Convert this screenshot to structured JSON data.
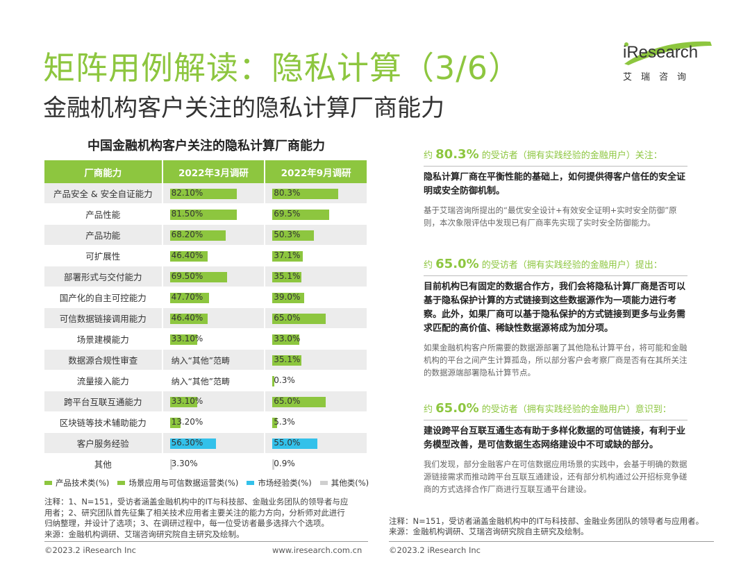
{
  "header": {
    "title": "矩阵用例解读：隐私计算（3/6）",
    "subtitle": "金融机构客户关注的隐私计算厂商能力"
  },
  "logo": {
    "word": "iResearch",
    "cn": "艾瑞咨询"
  },
  "chart_data": {
    "type": "table",
    "title": "中国金融机构客户关注的隐私计算厂商能力",
    "columns": [
      "厂商能力",
      "2022年3月调研",
      "2022年9月调研"
    ],
    "rows": [
      {
        "label": "产品安全 & 安全自证能力",
        "category": "产品技术类",
        "mar": 82.1,
        "mar_text": "82.10%",
        "sep": 80.3,
        "sep_text": "80.3%"
      },
      {
        "label": "产品性能",
        "category": "产品技术类",
        "mar": 81.5,
        "mar_text": "81.50%",
        "sep": 69.5,
        "sep_text": "69.5%"
      },
      {
        "label": "产品功能",
        "category": "产品技术类",
        "mar": 68.2,
        "mar_text": "68.20%",
        "sep": 50.3,
        "sep_text": "50.3%"
      },
      {
        "label": "可扩展性",
        "category": "产品技术类",
        "mar": 46.4,
        "mar_text": "46.40%",
        "sep": 37.1,
        "sep_text": "37.1%"
      },
      {
        "label": "部署形式与交付能力",
        "category": "产品技术类",
        "mar": 69.5,
        "mar_text": "69.50%",
        "sep": 35.1,
        "sep_text": "35.1%"
      },
      {
        "label": "国产化的自主可控能力",
        "category": "产品技术类",
        "mar": 47.7,
        "mar_text": "47.70%",
        "sep": 39.0,
        "sep_text": "39.0%"
      },
      {
        "label": "可信数据链接调用能力",
        "category": "场景应用与可信数据运营类",
        "mar": 46.4,
        "mar_text": "46.40%",
        "sep": 65.0,
        "sep_text": "65.0%"
      },
      {
        "label": "场景建模能力",
        "category": "场景应用与可信数据运营类",
        "mar": 33.1,
        "mar_text": "33.10%",
        "sep": 33.0,
        "sep_text": "33.0%"
      },
      {
        "label": "数据源合规性审查",
        "category": "场景应用与可信数据运营类",
        "mar": null,
        "mar_text": "纳入“其他”范畴",
        "sep": 35.1,
        "sep_text": "35.1%"
      },
      {
        "label": "流量接入能力",
        "category": "场景应用与可信数据运营类",
        "mar": null,
        "mar_text": "纳入“其他”范畴",
        "sep": 0.3,
        "sep_text": "0.3%"
      },
      {
        "label": "跨平台互联互通能力",
        "category": "场景应用与可信数据运营类",
        "mar": 33.1,
        "mar_text": "33.10%",
        "sep": 65.0,
        "sep_text": "65.0%"
      },
      {
        "label": "区块链等技术辅助能力",
        "category": "场景应用与可信数据运营类",
        "mar": 13.2,
        "mar_text": "13.20%",
        "sep": 5.3,
        "sep_text": "5.3%"
      },
      {
        "label": "客户服务经验",
        "category": "市场经验类",
        "mar": 56.3,
        "mar_text": "56.30%",
        "sep": 55.0,
        "sep_text": "55.0%"
      },
      {
        "label": "其他",
        "category": "其他类",
        "mar": 3.3,
        "mar_text": "3.30%",
        "sep": 0.9,
        "sep_text": "0.9%"
      }
    ],
    "legend": [
      {
        "name": "产品技术类(%)",
        "color": "#8dc63f"
      },
      {
        "name": "场景应用与可信数据运营类(%)",
        "color": "#8dc63f"
      },
      {
        "name": "市场经验类(%)",
        "color": "#33c1ea"
      },
      {
        "name": "其他类(%)",
        "color": "#cfcfcf"
      }
    ]
  },
  "notes": {
    "line1": "注释：1、N=151，受访者涵盖金融机构中的IT与科技部、金融业务团队的领导者与应",
    "line2": "用者；2、研究团队首先征集了相关技术应用者主要关注的能力方向，分析师对此进行",
    "line3": "归纳整理，并设计了选项；3、在调研过程中，每一位受访者最多选择六个选项。",
    "line4": "来源：金融机构调研、艾瑞咨询研究院自主研究及绘制。"
  },
  "footer": {
    "copyright_left": "©2023.2 iResearch Inc",
    "url": "www.iresearch.com.cn",
    "copyright_right": "©2023.2 iResearch Inc"
  },
  "right_notes": {
    "line1": "注释：N=151，受访者涵盖金融机构中的IT与科技部、金融业务团队的领导者与应用者。",
    "line2": "来源：金融机构调研、艾瑞咨询研究院自主研究及绘制。"
  },
  "insights": [
    {
      "prefix": "约",
      "pct": "80.3%",
      "suffix": "的受访者（拥有实践经验的金融用户）关注：",
      "bold": "隐私计算厂商在平衡性能的基础上，如何提供得客户信任的安全证明或安全防御机制。",
      "desc": "基于艾瑞咨询所提出的“最优安全设计+有效安全证明+实时安全防御”原则，本次象限评估中发现已有厂商率先实现了实时安全防御能力。"
    },
    {
      "prefix": "约",
      "pct": "65.0%",
      "suffix": "的受访者（拥有实践经验的金融用户）提出：",
      "bold": "目前机构已有固定的数据合作方，我们会将隐私计算厂商是否可以基于隐私保护计算的方式链接到这些数据源作为一项能力进行考察。此外，如果厂商可以基于隐私保护的方式链接到更多与业务需求匹配的高价值、稀缺性数据源将成为加分项。",
      "desc": "如果金融机构客户所需要的数据源部署了其他隐私计算平台，将可能和金融机构的平台之间产生计算孤岛，所以部分客户会考察厂商是否有在其所关注的数据源端部署隐私计算节点。"
    },
    {
      "prefix": "约",
      "pct": "65.0%",
      "suffix": "的受访者（拥有实践经验的金融用户）意识到：",
      "bold": "建设跨平台互联互通生态有助于多样化数据的可信链接，有利于业务模型改善，是可信数据生态网络建设中不可或缺的部分。",
      "desc": "我们发现，部分金融客户在可信数据应用场景的实践中，会基于明确的数据源链接需求而推动跨平台互联互通建设，还有部分机构通过公开招标竞争磋商的方式选择合作厂商进行互联互通平台建设。"
    }
  ]
}
